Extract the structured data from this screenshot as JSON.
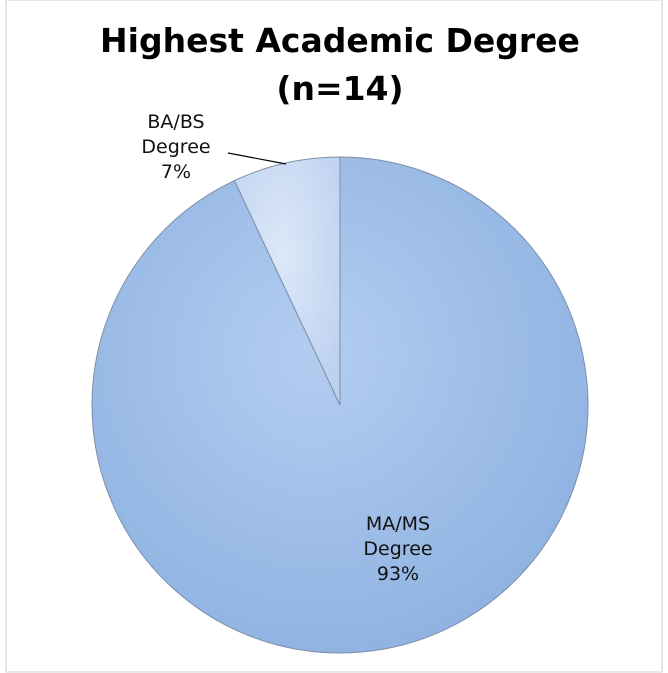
{
  "chart_data": {
    "type": "pie",
    "title": "Highest Academic Degree",
    "subtitle": "(n=14)",
    "categories": [
      "MA/MS Degree",
      "BA/BS Degree"
    ],
    "values": [
      93,
      7
    ],
    "value_labels": [
      "93%",
      "7%"
    ],
    "colors": [
      "#9ebde8",
      "#c8daf3"
    ]
  }
}
